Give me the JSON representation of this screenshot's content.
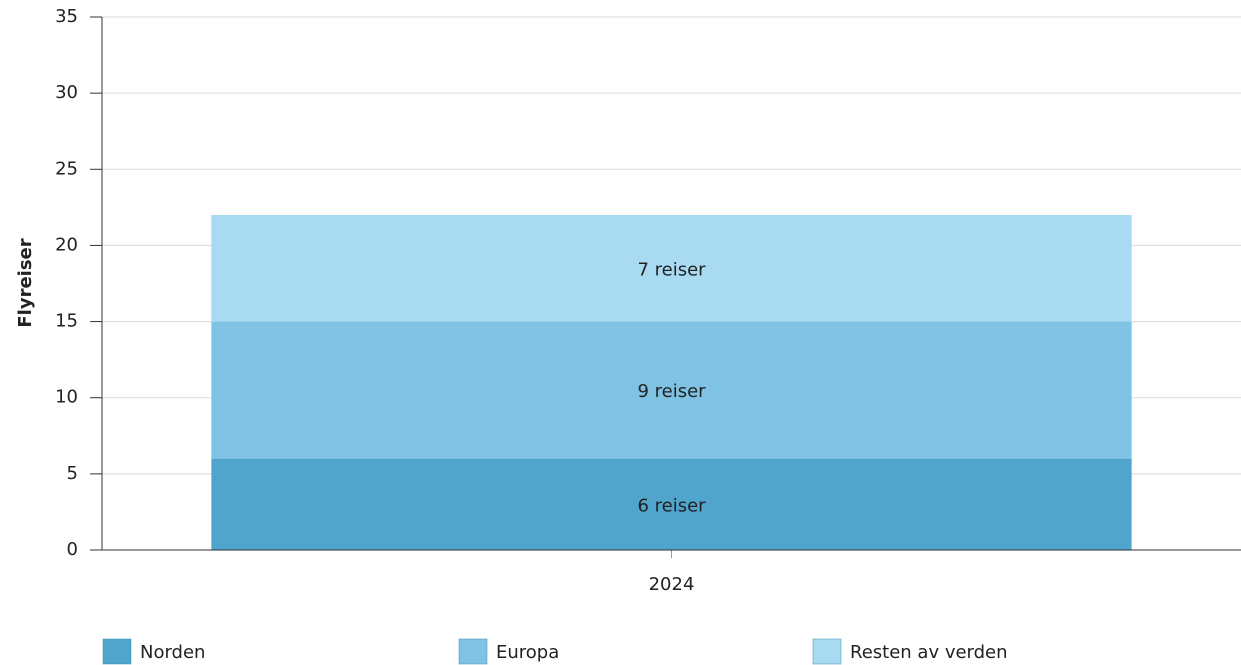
{
  "chart_data": {
    "type": "stacked_bar",
    "y_label": "Flyreiser",
    "categories": [
      "2024"
    ],
    "series": [
      {
        "name": "Norden",
        "color": "#4fa5cc",
        "values": [
          6
        ],
        "value_labels": [
          "6 reiser"
        ]
      },
      {
        "name": "Europa",
        "color": "#80c2e3",
        "values": [
          9
        ],
        "value_labels": [
          "9 reiser"
        ]
      },
      {
        "name": "Resten av verden",
        "color": "#a8daf2",
        "values": [
          7
        ],
        "value_labels": [
          "7 reiser"
        ]
      }
    ],
    "ylim": [
      0,
      35
    ],
    "yticks": [
      0,
      5,
      10,
      15,
      20,
      25,
      30,
      35
    ],
    "grid": true,
    "legend": "bottom"
  }
}
